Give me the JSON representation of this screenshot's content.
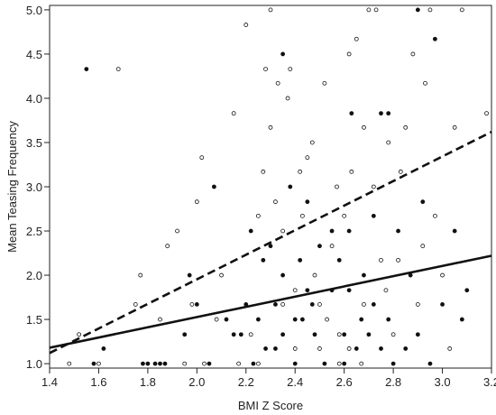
{
  "chart_data": {
    "type": "scatter",
    "title": "",
    "xlabel": "BMI Z Score",
    "ylabel": "Mean Teasing Frequency",
    "xlim": [
      1.4,
      3.2
    ],
    "ylim": [
      0.95,
      5.05
    ],
    "grid": false,
    "legend": "none",
    "x_ticks": [
      "1.4",
      "1.6",
      "1.8",
      "2.0",
      "2.2",
      "2.4",
      "2.6",
      "2.8",
      "3.0",
      "3.2"
    ],
    "y_ticks": [
      "1.0",
      "1.5",
      "2.0",
      "2.5",
      "3.0",
      "3.5",
      "4.0",
      "4.5",
      "5.0"
    ],
    "series": [
      {
        "marker": "filled",
        "points": [
          [
            1.55,
            4.33
          ],
          [
            1.58,
            1.0
          ],
          [
            1.62,
            1.17
          ],
          [
            1.78,
            1.0
          ],
          [
            1.8,
            1.0
          ],
          [
            1.83,
            1.0
          ],
          [
            1.85,
            1.0
          ],
          [
            1.87,
            1.0
          ],
          [
            1.95,
            1.33
          ],
          [
            1.97,
            2.0
          ],
          [
            2.0,
            1.67
          ],
          [
            2.05,
            1.0
          ],
          [
            2.07,
            3.0
          ],
          [
            2.12,
            1.5
          ],
          [
            2.15,
            1.33
          ],
          [
            2.18,
            1.33
          ],
          [
            2.2,
            1.67
          ],
          [
            2.22,
            2.5
          ],
          [
            2.23,
            1.0
          ],
          [
            2.25,
            1.5
          ],
          [
            2.27,
            2.17
          ],
          [
            2.3,
            2.33
          ],
          [
            2.32,
            1.17
          ],
          [
            2.35,
            2.0
          ],
          [
            2.35,
            4.5
          ],
          [
            2.35,
            1.33
          ],
          [
            2.38,
            3.0
          ],
          [
            2.4,
            1.0
          ],
          [
            2.42,
            2.17
          ],
          [
            2.43,
            1.5
          ],
          [
            2.45,
            2.83
          ],
          [
            2.47,
            1.67
          ],
          [
            2.48,
            1.33
          ],
          [
            2.5,
            2.33
          ],
          [
            2.52,
            1.0
          ],
          [
            2.55,
            1.83
          ],
          [
            2.58,
            2.17
          ],
          [
            2.6,
            1.0
          ],
          [
            2.62,
            2.5
          ],
          [
            2.63,
            3.83
          ],
          [
            2.65,
            1.17
          ],
          [
            2.67,
            1.5
          ],
          [
            2.68,
            2.0
          ],
          [
            2.7,
            1.33
          ],
          [
            2.72,
            2.67
          ],
          [
            2.72,
            1.67
          ],
          [
            2.75,
            3.83
          ],
          [
            2.78,
            3.83
          ],
          [
            2.78,
            1.5
          ],
          [
            2.8,
            1.0
          ],
          [
            2.82,
            2.5
          ],
          [
            2.85,
            1.17
          ],
          [
            2.87,
            2.0
          ],
          [
            2.9,
            5.0
          ],
          [
            2.9,
            1.33
          ],
          [
            2.92,
            2.83
          ],
          [
            2.95,
            1.0
          ],
          [
            2.97,
            4.67
          ],
          [
            3.0,
            1.67
          ],
          [
            3.05,
            2.5
          ],
          [
            3.08,
            1.5
          ],
          [
            3.1,
            1.83
          ],
          [
            2.45,
            1.83
          ],
          [
            2.55,
            2.5
          ],
          [
            2.32,
            1.67
          ],
          [
            2.28,
            1.17
          ],
          [
            2.62,
            1.83
          ],
          [
            2.4,
            1.5
          ],
          [
            2.6,
            1.33
          ],
          [
            2.75,
            1.17
          ]
        ]
      },
      {
        "marker": "open",
        "points": [
          [
            1.48,
            1.0
          ],
          [
            1.52,
            1.33
          ],
          [
            1.6,
            1.0
          ],
          [
            1.68,
            4.33
          ],
          [
            1.75,
            1.67
          ],
          [
            1.77,
            2.0
          ],
          [
            1.85,
            1.5
          ],
          [
            1.88,
            2.33
          ],
          [
            1.92,
            2.5
          ],
          [
            1.95,
            1.0
          ],
          [
            1.98,
            1.67
          ],
          [
            2.0,
            2.83
          ],
          [
            2.02,
            3.33
          ],
          [
            2.03,
            1.0
          ],
          [
            2.08,
            1.5
          ],
          [
            2.1,
            2.0
          ],
          [
            2.15,
            3.83
          ],
          [
            2.17,
            1.0
          ],
          [
            2.2,
            4.83
          ],
          [
            2.22,
            1.33
          ],
          [
            2.25,
            2.67
          ],
          [
            2.27,
            3.17
          ],
          [
            2.28,
            4.33
          ],
          [
            2.3,
            5.0
          ],
          [
            2.3,
            3.67
          ],
          [
            2.32,
            2.83
          ],
          [
            2.33,
            4.17
          ],
          [
            2.35,
            2.5
          ],
          [
            2.37,
            4.0
          ],
          [
            2.38,
            4.33
          ],
          [
            2.4,
            1.83
          ],
          [
            2.42,
            3.17
          ],
          [
            2.43,
            2.67
          ],
          [
            2.45,
            3.33
          ],
          [
            2.47,
            3.5
          ],
          [
            2.5,
            1.17
          ],
          [
            2.52,
            4.17
          ],
          [
            2.53,
            1.5
          ],
          [
            2.55,
            2.33
          ],
          [
            2.57,
            3.0
          ],
          [
            2.58,
            1.0
          ],
          [
            2.6,
            2.67
          ],
          [
            2.62,
            4.5
          ],
          [
            2.63,
            3.17
          ],
          [
            2.65,
            4.67
          ],
          [
            2.67,
            1.0
          ],
          [
            2.68,
            3.67
          ],
          [
            2.7,
            5.0
          ],
          [
            2.72,
            3.0
          ],
          [
            2.73,
            5.0
          ],
          [
            2.75,
            2.17
          ],
          [
            2.77,
            1.83
          ],
          [
            2.78,
            3.5
          ],
          [
            2.8,
            1.33
          ],
          [
            2.82,
            2.17
          ],
          [
            2.83,
            3.17
          ],
          [
            2.85,
            3.67
          ],
          [
            2.88,
            4.5
          ],
          [
            2.9,
            1.67
          ],
          [
            2.92,
            2.33
          ],
          [
            2.93,
            4.17
          ],
          [
            2.95,
            5.0
          ],
          [
            2.97,
            2.67
          ],
          [
            3.0,
            2.0
          ],
          [
            3.03,
            1.17
          ],
          [
            3.05,
            3.67
          ],
          [
            3.08,
            5.0
          ],
          [
            3.18,
            3.83
          ],
          [
            2.25,
            1.0
          ],
          [
            2.35,
            1.67
          ],
          [
            2.48,
            2.0
          ],
          [
            2.58,
            1.33
          ],
          [
            2.68,
            1.67
          ],
          [
            2.4,
            1.17
          ],
          [
            2.5,
            1.67
          ],
          [
            2.62,
            1.17
          ]
        ]
      }
    ],
    "lines": [
      {
        "style": "solid",
        "x": [
          1.4,
          3.2
        ],
        "y": [
          1.18,
          2.22
        ]
      },
      {
        "style": "dashed",
        "x": [
          1.4,
          3.2
        ],
        "y": [
          1.12,
          3.62
        ]
      }
    ]
  }
}
